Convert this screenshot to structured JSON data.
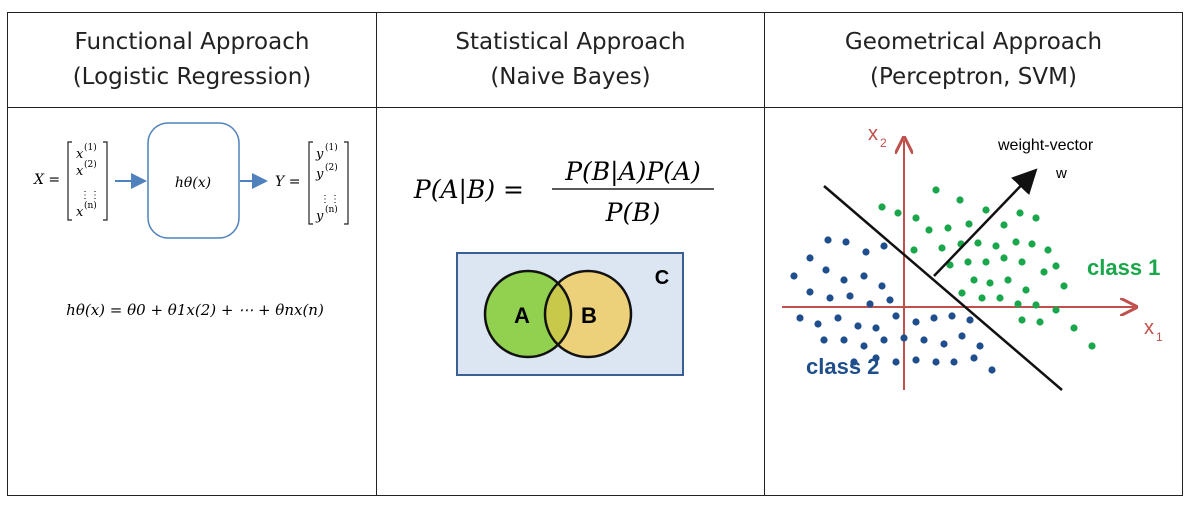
{
  "columns": [
    {
      "title": "Functional Approach",
      "subtitle": "(Logistic Regression)",
      "diagram": {
        "input_matrix_label": "X =",
        "input_entries": [
          "x",
          "x",
          "⋮⋮",
          "x"
        ],
        "input_superscripts": [
          "(1)",
          "(2)",
          "",
          "(n)"
        ],
        "hypothesis_box": "hθ(x)",
        "output_matrix_label": "Y =",
        "output_entries": [
          "y",
          "y",
          "⋮⋮",
          "y"
        ],
        "output_superscripts": [
          "(1)",
          "(2)",
          "",
          "(n)"
        ],
        "equation": "hθ(x) = θ0 + θ1x(2) + ⋯ + θnx(n)"
      }
    },
    {
      "title": "Statistical Approach",
      "subtitle": "(Naive Bayes)",
      "diagram": {
        "bayes_lhs": "P(A|B) =",
        "bayes_numerator": "P(B|A)P(A)",
        "bayes_denominator": "P(B)",
        "venn_universe_label": "C",
        "venn_left_label": "A",
        "venn_right_label": "B",
        "colors": {
          "universe": "#dce6f2",
          "universe_border": "#3a5f94",
          "set_a": "#92d050",
          "set_b": "#ecd07a",
          "overlap": "#c8c84a"
        }
      }
    },
    {
      "title": "Geometrical Approach",
      "subtitle": "(Perceptron, SVM)",
      "diagram": {
        "x_axis_label": "x",
        "x_axis_sub": "1",
        "y_axis_label": "x",
        "y_axis_sub": "2",
        "weight_label": "weight-vector",
        "weight_symbol": "w",
        "class1_label": "class 1",
        "class2_label": "class 2",
        "colors": {
          "axes": "#c0504d",
          "class1": "#1aa64a",
          "class2": "#1f4e8c"
        }
      }
    }
  ]
}
